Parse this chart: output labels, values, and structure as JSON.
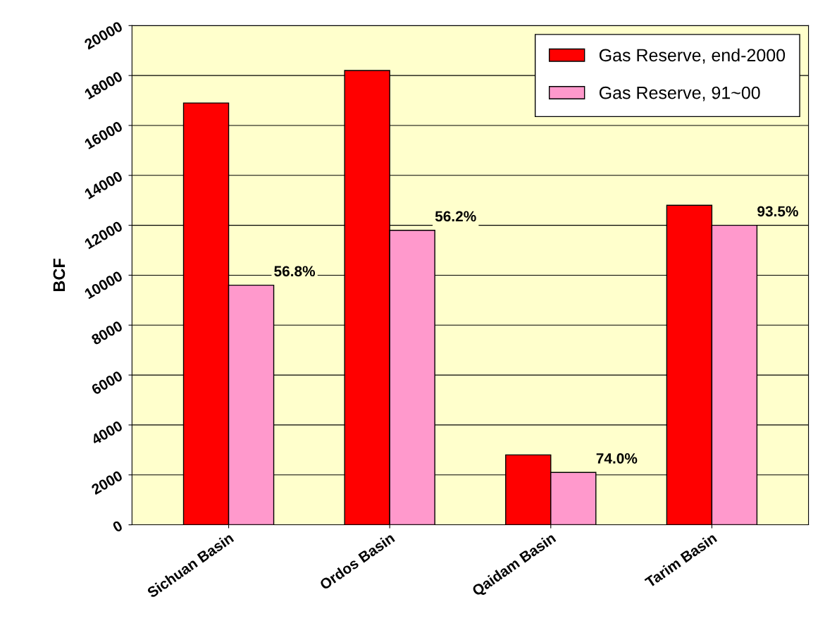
{
  "chart_data": {
    "type": "bar",
    "ylabel": "BCF",
    "categories": [
      "Sichuan Basin",
      "Ordos Basin",
      "Qaidam Basin",
      "Tarim Basin"
    ],
    "series": [
      {
        "name": "Gas Reserve, end-2000",
        "color": "#ff0000",
        "values": [
          16900,
          18200,
          2800,
          12800
        ]
      },
      {
        "name": "Gas Reserve, 91~00",
        "color": "#ff99cc",
        "values": [
          9600,
          11800,
          2100,
          12000
        ]
      }
    ],
    "annotations": [
      "56.8%",
      "56.2%",
      "74.0%",
      "93.5%"
    ],
    "ylim": [
      0,
      20000
    ],
    "yticks": [
      0,
      2000,
      4000,
      6000,
      8000,
      10000,
      12000,
      14000,
      16000,
      18000,
      20000
    ],
    "grid": "y",
    "legend": "top right"
  }
}
